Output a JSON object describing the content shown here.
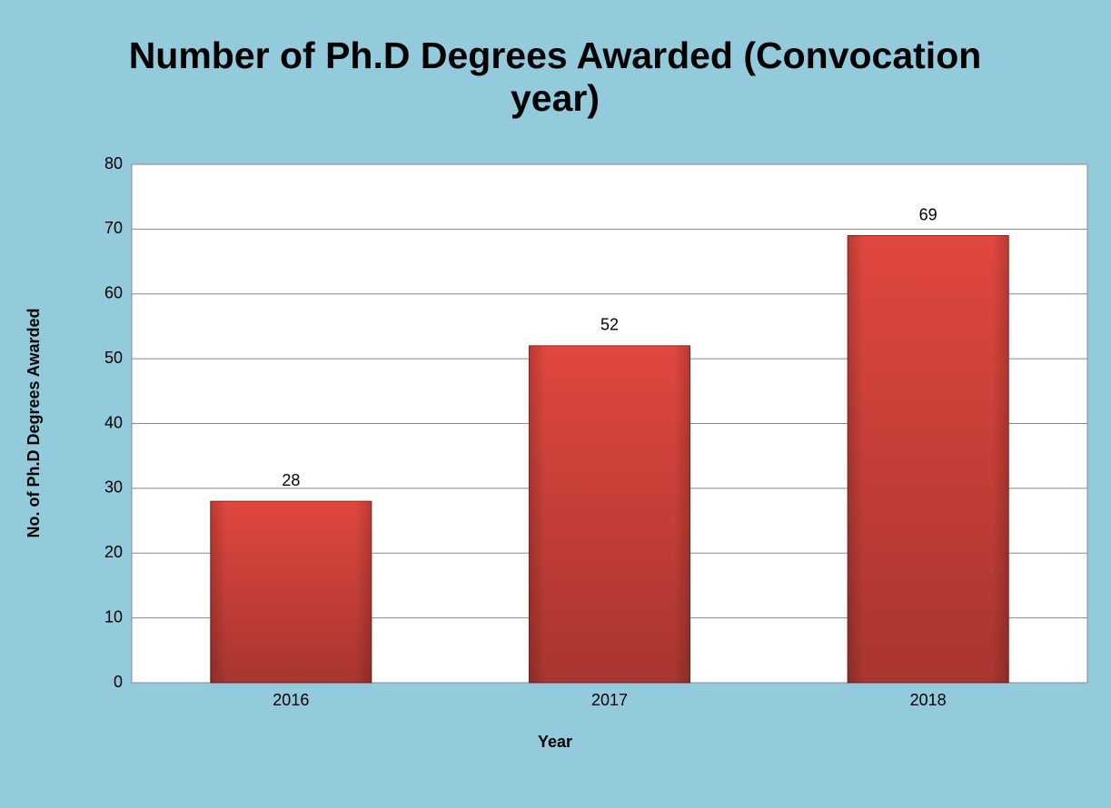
{
  "chart_data": {
    "type": "bar",
    "title": "Number of Ph.D Degrees Awarded (Convocation year)",
    "x_label": "Year",
    "y_label": "No. of Ph.D Degrees Awarded",
    "categories": [
      "2016",
      "2017",
      "2018"
    ],
    "values": [
      28,
      52,
      69
    ],
    "color": "#e0473f",
    "ylim": [
      0,
      80
    ],
    "yticks": [
      0,
      10,
      20,
      30,
      40,
      50,
      60,
      70,
      80
    ],
    "grid": true
  }
}
